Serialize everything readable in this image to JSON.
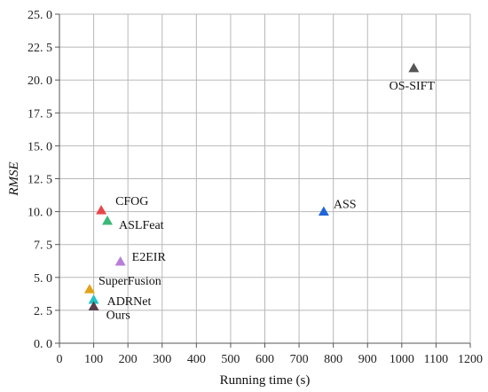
{
  "chart_data": {
    "type": "scatter",
    "title": "",
    "xlabel": "Running time (s)",
    "ylabel": "RMSE",
    "xlim": [
      0,
      1200
    ],
    "ylim": [
      0,
      25
    ],
    "xticks": [
      "0",
      "100",
      "200",
      "300",
      "400",
      "500",
      "600",
      "700",
      "800",
      "900",
      "1000",
      "1100",
      "1200"
    ],
    "yticks": [
      "0. 0",
      "2. 5",
      "5. 0",
      "7. 5",
      "10. 0",
      "12. 5",
      "15. 0",
      "17. 5",
      "20. 0",
      "22. 5",
      "25. 0"
    ],
    "grid": true,
    "marker": "triangle",
    "series": [
      {
        "name": "CFOG",
        "x": 122,
        "y": 10.1,
        "color": "#e8474a"
      },
      {
        "name": "ASLFeat",
        "x": 140,
        "y": 9.3,
        "color": "#3cb878"
      },
      {
        "name": "E2EIR",
        "x": 178,
        "y": 6.2,
        "color": "#b77fd9"
      },
      {
        "name": "SuperFusion",
        "x": 88,
        "y": 4.1,
        "color": "#e0a415"
      },
      {
        "name": "ADRNet",
        "x": 100,
        "y": 3.3,
        "color": "#23c2c7"
      },
      {
        "name": "Ours",
        "x": 100,
        "y": 2.8,
        "color": "#5a3d4a"
      },
      {
        "name": "ASS",
        "x": 772,
        "y": 10.0,
        "color": "#1f66d9"
      },
      {
        "name": "OS-SIFT",
        "x": 1035,
        "y": 20.9,
        "color": "#555555"
      }
    ]
  }
}
